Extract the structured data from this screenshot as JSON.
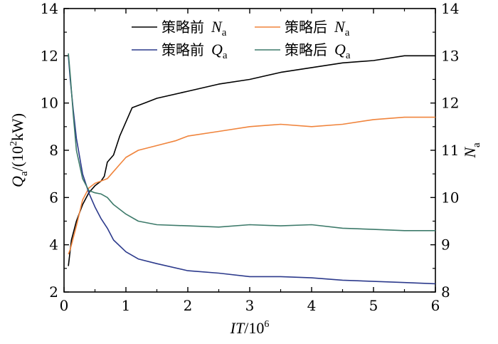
{
  "chart_data": {
    "type": "line",
    "x_range": [
      0,
      6
    ],
    "y_left_range": [
      2,
      14
    ],
    "y_right_range": [
      8,
      14
    ],
    "x_ticks": [
      "0",
      "1",
      "2",
      "3",
      "4",
      "5",
      "6"
    ],
    "y_left_ticks": [
      "2",
      "4",
      "6",
      "8",
      "10",
      "12",
      "14"
    ],
    "y_right_ticks": [
      "8",
      "9",
      "10",
      "11",
      "12",
      "13",
      "14"
    ],
    "xlabel": {
      "italic": "IT",
      "text": "/10",
      "sup": "6"
    },
    "ylabel_left": {
      "italic": "Q",
      "sub": "a",
      "text": "/(10",
      "sup": "2",
      "tail": "kW)"
    },
    "ylabel_right": {
      "italic": "N",
      "sub": "a"
    },
    "legend_placement": "top",
    "series": [
      {
        "name": "策略前 Na",
        "label": "策略前",
        "symbol": "N",
        "sub": "a",
        "axis": "right",
        "color": "#000000",
        "x": [
          0.07,
          0.12,
          0.2,
          0.3,
          0.4,
          0.5,
          0.6,
          0.65,
          0.7,
          0.8,
          0.9,
          1.0,
          1.1,
          1.3,
          1.5,
          2.0,
          2.5,
          3.0,
          3.5,
          4.0,
          4.5,
          5.0,
          5.5,
          6.0
        ],
        "values": [
          8.55,
          9.1,
          9.5,
          9.85,
          10.1,
          10.25,
          10.35,
          10.45,
          10.75,
          10.9,
          11.3,
          11.6,
          11.9,
          12.0,
          12.1,
          12.25,
          12.4,
          12.5,
          12.65,
          12.75,
          12.85,
          12.9,
          13.0,
          13.0
        ]
      },
      {
        "name": "策略后 Na",
        "label": "策略后",
        "symbol": "N",
        "sub": "a",
        "axis": "right",
        "color": "#f0843c",
        "x": [
          0.07,
          0.1,
          0.2,
          0.3,
          0.4,
          0.5,
          0.6,
          0.7,
          0.8,
          0.9,
          1.0,
          1.2,
          1.5,
          1.8,
          2.0,
          2.5,
          3.0,
          3.5,
          4.0,
          4.5,
          5.0,
          5.5,
          6.0
        ],
        "values": [
          8.8,
          8.9,
          9.4,
          9.95,
          10.2,
          10.3,
          10.35,
          10.4,
          10.55,
          10.7,
          10.85,
          11.0,
          11.1,
          11.2,
          11.3,
          11.4,
          11.5,
          11.55,
          11.5,
          11.55,
          11.65,
          11.7,
          11.7
        ]
      },
      {
        "name": "策略前 Qa",
        "label": "策略前",
        "symbol": "Q",
        "sub": "a",
        "axis": "left",
        "color": "#2c3a8c",
        "x": [
          0.07,
          0.1,
          0.15,
          0.2,
          0.3,
          0.4,
          0.5,
          0.6,
          0.7,
          0.8,
          1.0,
          1.2,
          1.5,
          2.0,
          2.5,
          3.0,
          3.5,
          4.0,
          4.5,
          5.0,
          5.5,
          6.0
        ],
        "values": [
          12.0,
          11.0,
          9.7,
          8.5,
          7.0,
          6.2,
          5.6,
          5.1,
          4.7,
          4.2,
          3.7,
          3.4,
          3.2,
          2.9,
          2.8,
          2.65,
          2.65,
          2.6,
          2.5,
          2.45,
          2.4,
          2.35
        ]
      },
      {
        "name": "策略后 Qa",
        "label": "策略后",
        "symbol": "Q",
        "sub": "a",
        "axis": "left",
        "color": "#3d7a6a",
        "x": [
          0.07,
          0.1,
          0.15,
          0.2,
          0.3,
          0.4,
          0.5,
          0.6,
          0.7,
          0.8,
          1.0,
          1.2,
          1.5,
          2.0,
          2.5,
          3.0,
          3.5,
          4.0,
          4.5,
          5.0,
          5.5,
          6.0
        ],
        "values": [
          12.1,
          11.2,
          9.5,
          8.0,
          6.8,
          6.3,
          6.2,
          6.15,
          6.0,
          5.7,
          5.3,
          5.0,
          4.85,
          4.8,
          4.75,
          4.85,
          4.8,
          4.85,
          4.7,
          4.65,
          4.6,
          4.6
        ]
      }
    ]
  }
}
